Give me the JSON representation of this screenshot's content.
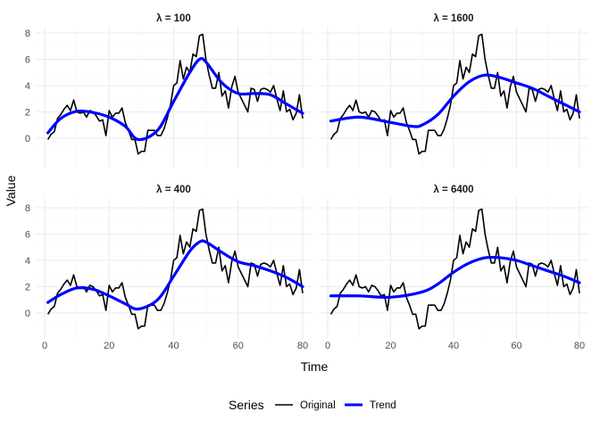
{
  "chart_data": {
    "type": "line",
    "xlabel": "Time",
    "ylabel": "Value",
    "xlim": [
      0,
      80
    ],
    "ylim": [
      -1.3,
      7.9
    ],
    "xticks": [
      0,
      20,
      40,
      60,
      80
    ],
    "yticks": [
      0,
      2,
      4,
      6,
      8
    ],
    "grid": true,
    "legend": {
      "title": "Series",
      "position": "bottom",
      "entries": [
        "Original",
        "Trend"
      ]
    },
    "colors": {
      "Original": "#000000",
      "Trend": "#0000ff"
    },
    "original": {
      "x_start": 1,
      "values": [
        -0.1,
        0.3,
        0.5,
        1.5,
        1.8,
        2.2,
        2.5,
        2.1,
        2.9,
        2.0,
        1.9,
        2.0,
        1.6,
        2.1,
        2.0,
        1.7,
        1.3,
        1.4,
        0.2,
        2.1,
        1.6,
        1.9,
        1.9,
        2.3,
        1.2,
        0.6,
        -0.1,
        -0.1,
        -1.2,
        -1.0,
        -1.0,
        0.6,
        0.6,
        0.6,
        0.2,
        0.2,
        0.7,
        1.5,
        2.5,
        4.0,
        4.2,
        5.9,
        4.5,
        5.4,
        5.0,
        6.4,
        6.2,
        7.8,
        7.9,
        6.0,
        4.8,
        3.8,
        3.8,
        5.0,
        3.2,
        3.6,
        2.3,
        3.9,
        4.7,
        3.5,
        3.0,
        2.5,
        2.0,
        3.8,
        3.7,
        2.8,
        3.7,
        3.8,
        3.7,
        3.5,
        4.0,
        3.0,
        2.1,
        3.6,
        2.0,
        2.2,
        1.4,
        1.9,
        3.3,
        1.5
      ]
    },
    "panels": [
      {
        "title": "λ = 100",
        "trend": {
          "x": [
            1,
            5,
            10,
            15,
            20,
            25,
            29,
            35,
            40,
            45,
            48,
            50,
            55,
            60,
            65,
            70,
            75,
            80
          ],
          "y": [
            0.4,
            1.5,
            2.05,
            1.95,
            1.6,
            0.9,
            -0.1,
            0.6,
            2.8,
            5.0,
            6.0,
            5.8,
            4.2,
            3.4,
            3.4,
            3.3,
            2.6,
            1.9
          ]
        }
      },
      {
        "title": "λ = 1600",
        "trend": {
          "x": [
            1,
            10,
            20,
            27,
            30,
            35,
            40,
            45,
            50,
            55,
            60,
            65,
            70,
            75,
            80
          ],
          "y": [
            1.3,
            1.6,
            1.2,
            0.9,
            1.0,
            1.8,
            3.2,
            4.3,
            4.8,
            4.6,
            4.2,
            3.8,
            3.2,
            2.6,
            2.0
          ]
        }
      },
      {
        "title": "λ = 400",
        "trend": {
          "x": [
            1,
            5,
            10,
            15,
            20,
            25,
            29,
            35,
            40,
            45,
            48,
            50,
            55,
            60,
            65,
            70,
            75,
            80
          ],
          "y": [
            0.8,
            1.4,
            1.9,
            1.8,
            1.3,
            0.7,
            0.3,
            1.0,
            2.8,
            4.7,
            5.4,
            5.4,
            4.6,
            3.9,
            3.6,
            3.2,
            2.7,
            2.0
          ]
        }
      },
      {
        "title": "λ = 6400",
        "trend": {
          "x": [
            1,
            10,
            20,
            30,
            35,
            40,
            45,
            50,
            55,
            60,
            65,
            70,
            75,
            80
          ],
          "y": [
            1.3,
            1.3,
            1.2,
            1.6,
            2.2,
            3.1,
            3.8,
            4.2,
            4.2,
            4.0,
            3.6,
            3.2,
            2.8,
            2.3
          ]
        }
      }
    ]
  }
}
